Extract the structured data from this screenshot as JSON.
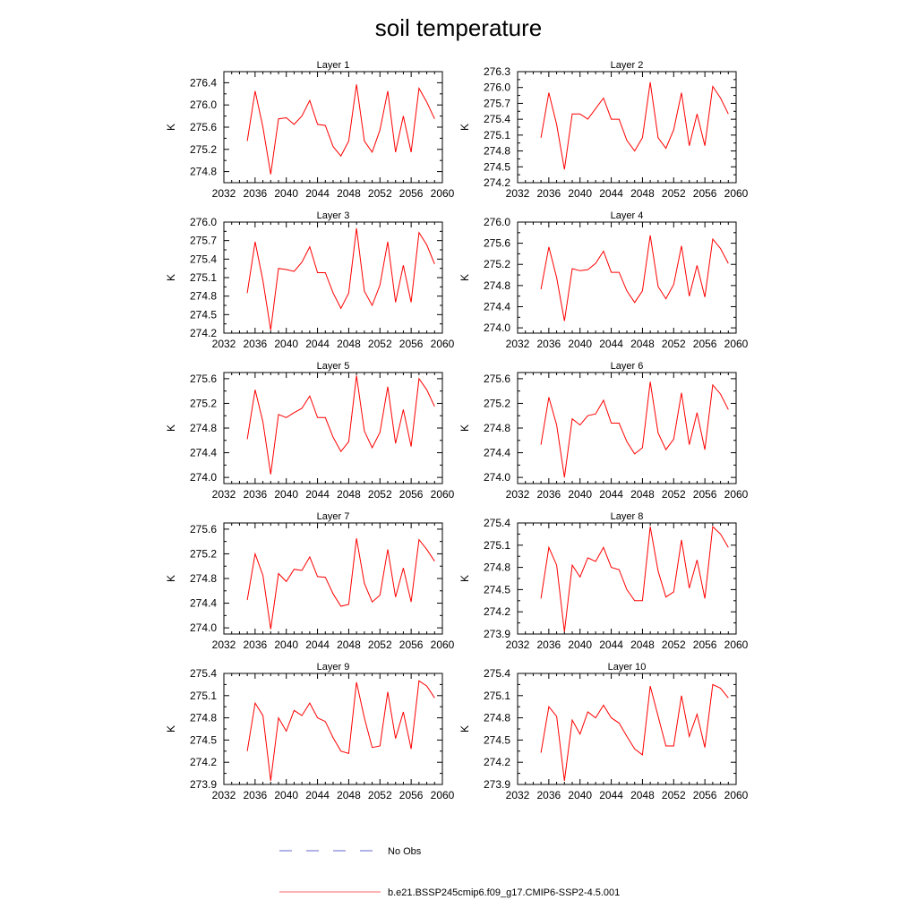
{
  "figure": {
    "title": "soil temperature",
    "ylabel": "K"
  },
  "chart_data": [
    {
      "type": "line",
      "title": "Layer 1",
      "ylabel": "K",
      "xlim": [
        2032,
        2060
      ],
      "ylim": [
        274.6,
        276.6
      ],
      "xticks": [
        2032,
        2036,
        2040,
        2044,
        2048,
        2052,
        2056,
        2060
      ],
      "yticks": [
        "274.8",
        "275.2",
        "275.6",
        "276.0",
        "276.4"
      ],
      "x": [
        2035,
        2036,
        2037,
        2038,
        2039,
        2040,
        2041,
        2042,
        2043,
        2044,
        2045,
        2046,
        2047,
        2048,
        2049,
        2050,
        2051,
        2052,
        2053,
        2054,
        2055,
        2056,
        2057,
        2058,
        2059
      ],
      "series": [
        {
          "name": "b.e21.BSSP245cmip6.f09_g17.CMIP6-SSP2-4.5.001",
          "color": "#ff0000",
          "values": [
            275.35,
            276.25,
            275.6,
            274.75,
            275.75,
            275.77,
            275.65,
            275.8,
            276.08,
            275.65,
            275.63,
            275.25,
            275.08,
            275.35,
            276.37,
            275.35,
            275.15,
            275.55,
            276.25,
            275.15,
            275.8,
            275.15,
            276.3,
            276.05,
            275.75
          ]
        }
      ]
    },
    {
      "type": "line",
      "title": "Layer 2",
      "ylabel": "K",
      "xlim": [
        2032,
        2060
      ],
      "ylim": [
        274.2,
        276.3
      ],
      "xticks": [
        2032,
        2036,
        2040,
        2044,
        2048,
        2052,
        2056,
        2060
      ],
      "yticks": [
        "274.2",
        "274.5",
        "274.8",
        "275.1",
        "275.4",
        "275.7",
        "276.0",
        "276.3"
      ],
      "x": [
        2035,
        2036,
        2037,
        2038,
        2039,
        2040,
        2041,
        2042,
        2043,
        2044,
        2045,
        2046,
        2047,
        2048,
        2049,
        2050,
        2051,
        2052,
        2053,
        2054,
        2055,
        2056,
        2057,
        2058,
        2059
      ],
      "series": [
        {
          "name": "b.e21.BSSP245cmip6.f09_g17.CMIP6-SSP2-4.5.001",
          "color": "#ff0000",
          "values": [
            275.05,
            275.9,
            275.3,
            274.45,
            275.5,
            275.5,
            275.4,
            275.6,
            275.8,
            275.4,
            275.4,
            275.0,
            274.8,
            275.05,
            276.1,
            275.05,
            274.85,
            275.2,
            275.9,
            274.9,
            275.5,
            274.9,
            276.02,
            275.8,
            275.5
          ]
        }
      ]
    },
    {
      "type": "line",
      "title": "Layer 3",
      "ylabel": "K",
      "xlim": [
        2032,
        2060
      ],
      "ylim": [
        274.2,
        276.0
      ],
      "xticks": [
        2032,
        2036,
        2040,
        2044,
        2048,
        2052,
        2056,
        2060
      ],
      "yticks": [
        "274.2",
        "274.5",
        "274.8",
        "275.1",
        "275.4",
        "275.7",
        "276.0"
      ],
      "x": [
        2035,
        2036,
        2037,
        2038,
        2039,
        2040,
        2041,
        2042,
        2043,
        2044,
        2045,
        2046,
        2047,
        2048,
        2049,
        2050,
        2051,
        2052,
        2053,
        2054,
        2055,
        2056,
        2057,
        2058,
        2059
      ],
      "series": [
        {
          "name": "b.e21.BSSP245cmip6.f09_g17.CMIP6-SSP2-4.5.001",
          "color": "#ff0000",
          "values": [
            274.85,
            275.68,
            275.05,
            274.25,
            275.25,
            275.23,
            275.2,
            275.35,
            275.6,
            275.18,
            275.18,
            274.85,
            274.6,
            274.85,
            275.9,
            274.88,
            274.65,
            274.98,
            275.68,
            274.7,
            275.3,
            274.7,
            275.83,
            275.63,
            275.32
          ]
        }
      ]
    },
    {
      "type": "line",
      "title": "Layer 4",
      "ylabel": "K",
      "xlim": [
        2032,
        2060
      ],
      "ylim": [
        273.9,
        276.0
      ],
      "xticks": [
        2032,
        2036,
        2040,
        2044,
        2048,
        2052,
        2056,
        2060
      ],
      "yticks": [
        "274.0",
        "274.4",
        "274.8",
        "275.2",
        "275.6",
        "276.0"
      ],
      "x": [
        2035,
        2036,
        2037,
        2038,
        2039,
        2040,
        2041,
        2042,
        2043,
        2044,
        2045,
        2046,
        2047,
        2048,
        2049,
        2050,
        2051,
        2052,
        2053,
        2054,
        2055,
        2056,
        2057,
        2058,
        2059
      ],
      "series": [
        {
          "name": "b.e21.BSSP245cmip6.f09_g17.CMIP6-SSP2-4.5.001",
          "color": "#ff0000",
          "values": [
            274.73,
            275.53,
            274.95,
            274.13,
            275.12,
            275.08,
            275.1,
            275.22,
            275.45,
            275.05,
            275.05,
            274.7,
            274.48,
            274.7,
            275.75,
            274.78,
            274.55,
            274.82,
            275.55,
            274.6,
            275.18,
            274.58,
            275.68,
            275.5,
            275.22
          ]
        }
      ]
    },
    {
      "type": "line",
      "title": "Layer 5",
      "ylabel": "K",
      "xlim": [
        2032,
        2060
      ],
      "ylim": [
        273.9,
        275.7
      ],
      "xticks": [
        2032,
        2036,
        2040,
        2044,
        2048,
        2052,
        2056,
        2060
      ],
      "yticks": [
        "274.0",
        "274.4",
        "274.8",
        "275.2",
        "275.6"
      ],
      "x": [
        2035,
        2036,
        2037,
        2038,
        2039,
        2040,
        2041,
        2042,
        2043,
        2044,
        2045,
        2046,
        2047,
        2048,
        2049,
        2050,
        2051,
        2052,
        2053,
        2054,
        2055,
        2056,
        2057,
        2058,
        2059
      ],
      "series": [
        {
          "name": "b.e21.BSSP245cmip6.f09_g17.CMIP6-SSP2-4.5.001",
          "color": "#ff0000",
          "values": [
            274.62,
            275.42,
            274.9,
            274.05,
            275.02,
            274.97,
            275.05,
            275.12,
            275.32,
            274.97,
            274.97,
            274.65,
            274.42,
            274.58,
            275.65,
            274.75,
            274.48,
            274.73,
            275.47,
            274.55,
            275.1,
            274.5,
            275.6,
            275.42,
            275.15
          ]
        }
      ]
    },
    {
      "type": "line",
      "title": "Layer 6",
      "ylabel": "K",
      "xlim": [
        2032,
        2060
      ],
      "ylim": [
        273.9,
        275.7
      ],
      "xticks": [
        2032,
        2036,
        2040,
        2044,
        2048,
        2052,
        2056,
        2060
      ],
      "yticks": [
        "274.0",
        "274.4",
        "274.8",
        "275.2",
        "275.6"
      ],
      "x": [
        2035,
        2036,
        2037,
        2038,
        2039,
        2040,
        2041,
        2042,
        2043,
        2044,
        2045,
        2046,
        2047,
        2048,
        2049,
        2050,
        2051,
        2052,
        2053,
        2054,
        2055,
        2056,
        2057,
        2058,
        2059
      ],
      "series": [
        {
          "name": "b.e21.BSSP245cmip6.f09_g17.CMIP6-SSP2-4.5.001",
          "color": "#ff0000",
          "values": [
            274.53,
            275.3,
            274.85,
            274.0,
            274.95,
            274.85,
            275.0,
            275.03,
            275.25,
            274.88,
            274.88,
            274.58,
            274.38,
            274.48,
            275.55,
            274.72,
            274.45,
            274.62,
            275.37,
            274.53,
            275.05,
            274.45,
            275.5,
            275.35,
            275.1
          ]
        }
      ]
    },
    {
      "type": "line",
      "title": "Layer 7",
      "ylabel": "K",
      "xlim": [
        2032,
        2060
      ],
      "ylim": [
        273.9,
        275.7
      ],
      "xticks": [
        2032,
        2036,
        2040,
        2044,
        2048,
        2052,
        2056,
        2060
      ],
      "yticks": [
        "274.0",
        "274.4",
        "274.8",
        "275.2",
        "275.6"
      ],
      "x": [
        2035,
        2036,
        2037,
        2038,
        2039,
        2040,
        2041,
        2042,
        2043,
        2044,
        2045,
        2046,
        2047,
        2048,
        2049,
        2050,
        2051,
        2052,
        2053,
        2054,
        2055,
        2056,
        2057,
        2058,
        2059
      ],
      "series": [
        {
          "name": "b.e21.BSSP245cmip6.f09_g17.CMIP6-SSP2-4.5.001",
          "color": "#ff0000",
          "values": [
            274.45,
            275.2,
            274.85,
            273.98,
            274.88,
            274.75,
            274.95,
            274.93,
            275.15,
            274.83,
            274.82,
            274.55,
            274.35,
            274.38,
            275.45,
            274.72,
            274.42,
            274.53,
            275.27,
            274.5,
            274.97,
            274.42,
            275.43,
            275.27,
            275.08
          ]
        }
      ]
    },
    {
      "type": "line",
      "title": "Layer 8",
      "ylabel": "K",
      "xlim": [
        2032,
        2060
      ],
      "ylim": [
        273.9,
        275.4
      ],
      "xticks": [
        2032,
        2036,
        2040,
        2044,
        2048,
        2052,
        2056,
        2060
      ],
      "yticks": [
        "273.9",
        "274.2",
        "274.5",
        "274.8",
        "275.1",
        "275.4"
      ],
      "x": [
        2035,
        2036,
        2037,
        2038,
        2039,
        2040,
        2041,
        2042,
        2043,
        2044,
        2045,
        2046,
        2047,
        2048,
        2049,
        2050,
        2051,
        2052,
        2053,
        2054,
        2055,
        2056,
        2057,
        2058,
        2059
      ],
      "series": [
        {
          "name": "b.e21.BSSP245cmip6.f09_g17.CMIP6-SSP2-4.5.001",
          "color": "#ff0000",
          "values": [
            274.38,
            275.07,
            274.83,
            273.93,
            274.83,
            274.67,
            274.93,
            274.88,
            275.07,
            274.8,
            274.77,
            274.5,
            274.35,
            274.35,
            275.35,
            274.75,
            274.4,
            274.47,
            275.17,
            274.52,
            274.9,
            274.38,
            275.35,
            275.25,
            275.07
          ]
        }
      ]
    },
    {
      "type": "line",
      "title": "Layer 9",
      "ylabel": "K",
      "xlim": [
        2032,
        2060
      ],
      "ylim": [
        273.9,
        275.4
      ],
      "xticks": [
        2032,
        2036,
        2040,
        2044,
        2048,
        2052,
        2056,
        2060
      ],
      "yticks": [
        "273.9",
        "274.2",
        "274.5",
        "274.8",
        "275.1",
        "275.4"
      ],
      "x": [
        2035,
        2036,
        2037,
        2038,
        2039,
        2040,
        2041,
        2042,
        2043,
        2044,
        2045,
        2046,
        2047,
        2048,
        2049,
        2050,
        2051,
        2052,
        2053,
        2054,
        2055,
        2056,
        2057,
        2058,
        2059
      ],
      "series": [
        {
          "name": "b.e21.BSSP245cmip6.f09_g17.CMIP6-SSP2-4.5.001",
          "color": "#ff0000",
          "values": [
            274.35,
            275.0,
            274.83,
            273.95,
            274.8,
            274.62,
            274.9,
            274.83,
            275.0,
            274.8,
            274.75,
            274.53,
            274.35,
            274.32,
            275.28,
            274.8,
            274.4,
            274.42,
            275.15,
            274.52,
            274.88,
            274.38,
            275.3,
            275.23,
            275.07
          ]
        }
      ]
    },
    {
      "type": "line",
      "title": "Layer 10",
      "ylabel": "K",
      "xlim": [
        2032,
        2060
      ],
      "ylim": [
        273.9,
        275.4
      ],
      "xticks": [
        2032,
        2036,
        2040,
        2044,
        2048,
        2052,
        2056,
        2060
      ],
      "yticks": [
        "273.9",
        "274.2",
        "274.5",
        "274.8",
        "275.1",
        "275.4"
      ],
      "x": [
        2035,
        2036,
        2037,
        2038,
        2039,
        2040,
        2041,
        2042,
        2043,
        2044,
        2045,
        2046,
        2047,
        2048,
        2049,
        2050,
        2051,
        2052,
        2053,
        2054,
        2055,
        2056,
        2057,
        2058,
        2059
      ],
      "series": [
        {
          "name": "b.e21.BSSP245cmip6.f09_g17.CMIP6-SSP2-4.5.001",
          "color": "#ff0000",
          "values": [
            274.33,
            274.95,
            274.82,
            273.95,
            274.77,
            274.58,
            274.88,
            274.8,
            274.97,
            274.8,
            274.73,
            274.55,
            274.38,
            274.3,
            275.23,
            274.82,
            274.42,
            274.42,
            275.1,
            274.55,
            274.85,
            274.4,
            275.25,
            275.2,
            275.07
          ]
        }
      ]
    }
  ],
  "legend": {
    "items": [
      {
        "label": "No Obs",
        "color": "#6666cc",
        "dash": "dashed"
      },
      {
        "label": "b.e21.BSSP245cmip6.f09_g17.CMIP6-SSP2-4.5.001",
        "color": "#ff6666",
        "dash": "solid"
      }
    ]
  }
}
